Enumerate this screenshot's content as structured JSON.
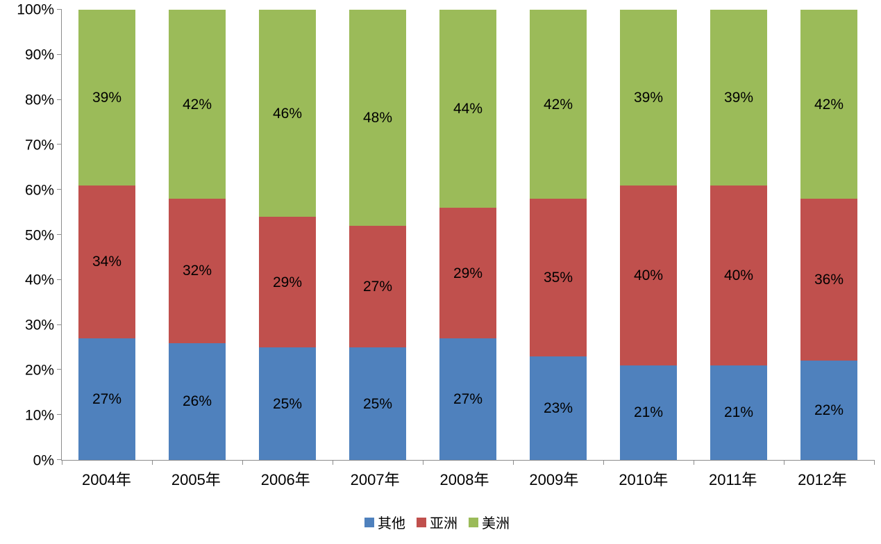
{
  "chart_data": {
    "type": "bar",
    "stacked": true,
    "percent_stacked": true,
    "unit": "%",
    "title": "",
    "xlabel": "",
    "ylabel": "",
    "ylim": [
      0,
      100
    ],
    "grid": false,
    "legend_position": "bottom",
    "categories": [
      "2004年",
      "2005年",
      "2006年",
      "2007年",
      "2008年",
      "2009年",
      "2010年",
      "2011年",
      "2012年"
    ],
    "series": [
      {
        "name": "其他",
        "color": "#4F81BD",
        "values": [
          27,
          26,
          25,
          25,
          27,
          23,
          21,
          21,
          22
        ]
      },
      {
        "name": "亚洲",
        "color": "#C0504D",
        "values": [
          34,
          32,
          29,
          27,
          29,
          35,
          40,
          40,
          36
        ]
      },
      {
        "name": "美洲",
        "color": "#9BBB59",
        "values": [
          39,
          42,
          46,
          48,
          44,
          42,
          39,
          39,
          42
        ]
      }
    ],
    "y_ticks": [
      "0%",
      "10%",
      "20%",
      "30%",
      "40%",
      "50%",
      "60%",
      "70%",
      "80%",
      "90%",
      "100%"
    ]
  }
}
